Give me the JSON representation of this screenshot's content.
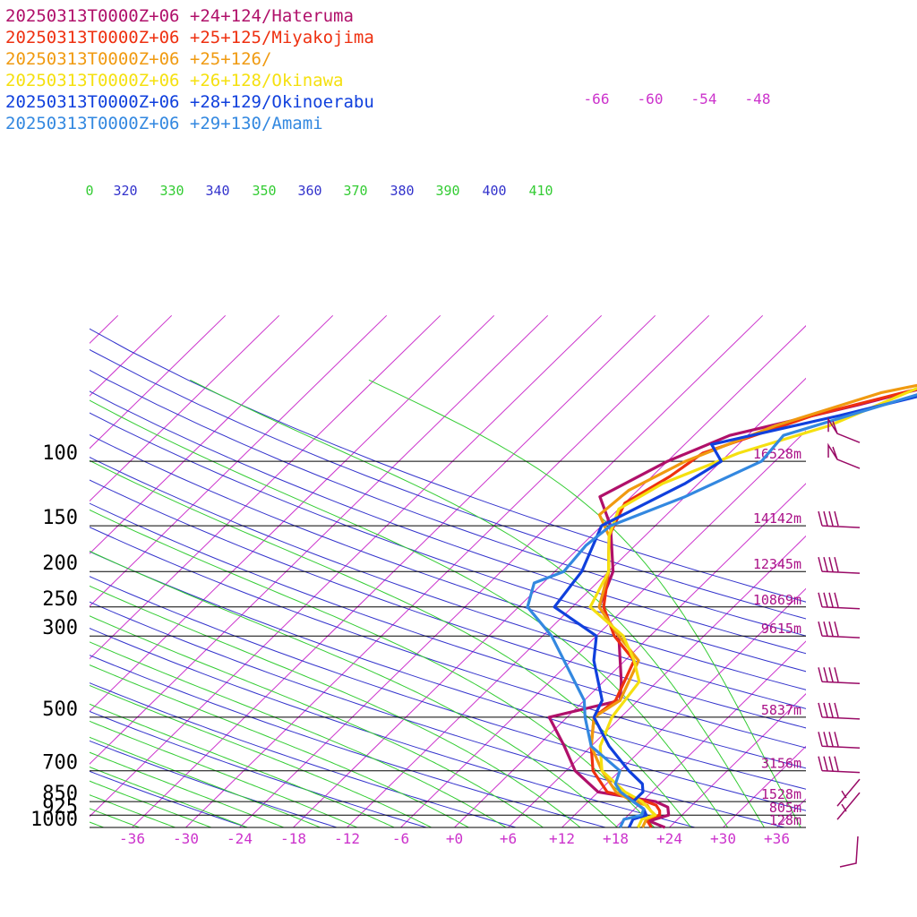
{
  "chart_data": {
    "type": "line",
    "title": "",
    "xlabel": "",
    "ylabel": "",
    "legend_position": "top-left",
    "colors": {
      "isobar": "#000000",
      "isotherm": "#cc33cc",
      "dry_adiabat": "#3333cc",
      "moist_adiabat": "#33cc33",
      "tick_label": "#cc33cc",
      "dry_label": "#3333cc",
      "moist_label": "#33cc33",
      "height_label": "#aa1188"
    },
    "pressure_levels": [
      {
        "p": 100,
        "label": "100",
        "height": "16528m"
      },
      {
        "p": 150,
        "label": "150",
        "height": "14142m"
      },
      {
        "p": 200,
        "label": "200",
        "height": "12345m"
      },
      {
        "p": 250,
        "label": "250",
        "height": "10869m"
      },
      {
        "p": 300,
        "label": "300",
        "height": "9615m"
      },
      {
        "p": 500,
        "label": "500",
        "height": "5837m"
      },
      {
        "p": 700,
        "label": "700",
        "height": "3156m"
      },
      {
        "p": 850,
        "label": "850",
        "height": "1528m"
      },
      {
        "p": 925,
        "label": "925",
        "height": "805m"
      },
      {
        "p": 1000,
        "label": "1000",
        "height": "128m"
      }
    ],
    "x_ticks": [
      {
        "t": -36,
        "label": "-36"
      },
      {
        "t": -30,
        "label": "-30"
      },
      {
        "t": -24,
        "label": "-24"
      },
      {
        "t": -18,
        "label": "-18"
      },
      {
        "t": -12,
        "label": "-12"
      },
      {
        "t": -6,
        "label": "-6"
      },
      {
        "t": 0,
        "label": "+0"
      },
      {
        "t": 6,
        "label": "+6"
      },
      {
        "t": 12,
        "label": "+12"
      },
      {
        "t": 18,
        "label": "+18"
      },
      {
        "t": 24,
        "label": "+24"
      },
      {
        "t": 30,
        "label": "+30"
      },
      {
        "t": 36,
        "label": "+36"
      }
    ],
    "top_ticks": [
      {
        "t": -66,
        "label": "-66"
      },
      {
        "t": -60,
        "label": "-60"
      },
      {
        "t": -54,
        "label": "-54"
      },
      {
        "t": -48,
        "label": "-48"
      }
    ],
    "theta_labels": [
      {
        "text": "0",
        "kind": "moist"
      },
      {
        "text": "320",
        "kind": "dry"
      },
      {
        "text": "330",
        "kind": "moist"
      },
      {
        "text": "340",
        "kind": "dry"
      },
      {
        "text": "350",
        "kind": "moist"
      },
      {
        "text": "360",
        "kind": "dry"
      },
      {
        "text": "370",
        "kind": "moist"
      },
      {
        "text": "380",
        "kind": "dry"
      },
      {
        "text": "390",
        "kind": "moist"
      },
      {
        "text": "400",
        "kind": "dry"
      },
      {
        "text": "410",
        "kind": "moist"
      }
    ],
    "series": [
      {
        "name": "20250313T0000Z+06 +24+124/Hateruma",
        "color": "#b0106a",
        "points": [
          [
            1000,
            23.5
          ],
          [
            960,
            21
          ],
          [
            925,
            22.5
          ],
          [
            880,
            21.5
          ],
          [
            850,
            19.5
          ],
          [
            800,
            12
          ],
          [
            700,
            7
          ],
          [
            600,
            3
          ],
          [
            500,
            -2
          ],
          [
            450,
            4
          ],
          [
            400,
            2
          ],
          [
            300,
            -3.5
          ],
          [
            250,
            -9
          ],
          [
            200,
            -11.5
          ],
          [
            150,
            -17
          ],
          [
            125,
            -21.5
          ],
          [
            100,
            -18
          ],
          [
            85,
            -14
          ],
          [
            70,
            -3
          ],
          [
            50,
            14
          ]
        ]
      },
      {
        "name": "20250313T0000Z+06 +25+125/Miyakojima",
        "color": "#ee3010",
        "points": [
          [
            1000,
            22
          ],
          [
            950,
            20.5
          ],
          [
            925,
            21.5
          ],
          [
            900,
            21
          ],
          [
            870,
            20
          ],
          [
            850,
            18.5
          ],
          [
            800,
            13
          ],
          [
            700,
            9
          ],
          [
            600,
            6
          ],
          [
            500,
            3
          ],
          [
            450,
            3.5
          ],
          [
            350,
            1
          ],
          [
            300,
            -4
          ],
          [
            250,
            -8.5
          ],
          [
            200,
            -12
          ],
          [
            160,
            -16
          ],
          [
            130,
            -18
          ],
          [
            110,
            -16
          ],
          [
            95,
            -15
          ],
          [
            75,
            -7
          ],
          [
            50,
            14
          ]
        ]
      },
      {
        "name": "20250313T0000Z+06 +25+126/",
        "color": "#f09a10",
        "points": [
          [
            1000,
            21
          ],
          [
            950,
            20.5
          ],
          [
            925,
            21
          ],
          [
            900,
            20
          ],
          [
            870,
            19
          ],
          [
            850,
            17
          ],
          [
            800,
            14
          ],
          [
            700,
            10
          ],
          [
            600,
            6
          ],
          [
            500,
            3
          ],
          [
            450,
            4
          ],
          [
            350,
            1.5
          ],
          [
            300,
            -3.5
          ],
          [
            250,
            -9
          ],
          [
            200,
            -12
          ],
          [
            160,
            -16
          ],
          [
            140,
            -19.5
          ],
          [
            120,
            -19
          ],
          [
            100,
            -16
          ],
          [
            80,
            -10
          ],
          [
            65,
            -2
          ],
          [
            50,
            16
          ]
        ]
      },
      {
        "name": "20250313T0000Z+06 +26+128/Okinawa",
        "color": "#f5e010",
        "points": [
          [
            1000,
            20.5
          ],
          [
            950,
            20
          ],
          [
            925,
            21
          ],
          [
            900,
            20
          ],
          [
            850,
            18
          ],
          [
            800,
            15
          ],
          [
            700,
            10
          ],
          [
            600,
            7
          ],
          [
            500,
            5
          ],
          [
            400,
            4
          ],
          [
            350,
            1
          ],
          [
            300,
            -3
          ],
          [
            250,
            -10
          ],
          [
            200,
            -12
          ],
          [
            160,
            -16
          ],
          [
            135,
            -18
          ],
          [
            115,
            -16
          ],
          [
            95,
            -11
          ],
          [
            80,
            -4
          ],
          [
            62,
            2
          ],
          [
            50,
            17
          ]
        ]
      },
      {
        "name": "20250313T0000Z+06 +28+129/Okinoerabu",
        "color": "#1040dd",
        "points": [
          [
            1000,
            19.5
          ],
          [
            950,
            19
          ],
          [
            925,
            20
          ],
          [
            890,
            19
          ],
          [
            850,
            17
          ],
          [
            800,
            17
          ],
          [
            760,
            16
          ],
          [
            700,
            13
          ],
          [
            600,
            8
          ],
          [
            500,
            3
          ],
          [
            450,
            2
          ],
          [
            350,
            -3.5
          ],
          [
            300,
            -6
          ],
          [
            250,
            -14
          ],
          [
            200,
            -15
          ],
          [
            150,
            -18
          ],
          [
            115,
            -13.5
          ],
          [
            100,
            -12
          ],
          [
            90,
            -15
          ],
          [
            75,
            -4
          ],
          [
            50,
            18
          ]
        ]
      },
      {
        "name": "20250313T0000Z+06 +29+130/Amami",
        "color": "#3388e0",
        "points": [
          [
            1000,
            18.5
          ],
          [
            950,
            18
          ],
          [
            925,
            19.5
          ],
          [
            890,
            19
          ],
          [
            850,
            17
          ],
          [
            800,
            14.5
          ],
          [
            760,
            13
          ],
          [
            700,
            12
          ],
          [
            600,
            6
          ],
          [
            500,
            2
          ],
          [
            450,
            0
          ],
          [
            300,
            -11
          ],
          [
            250,
            -17
          ],
          [
            215,
            -19
          ],
          [
            200,
            -17
          ],
          [
            170,
            -17.5
          ],
          [
            150,
            -17
          ],
          [
            125,
            -12
          ],
          [
            100,
            -7.5
          ],
          [
            85,
            -8
          ],
          [
            60,
            6
          ],
          [
            50,
            20
          ]
        ]
      }
    ],
    "wind_barbs": [
      {
        "p": 85,
        "kind": "pennant"
      },
      {
        "p": 100,
        "kind": "pennant"
      },
      {
        "p": 150,
        "kind": "barbs"
      },
      {
        "p": 200,
        "kind": "barbs"
      },
      {
        "p": 250,
        "kind": "barbs"
      },
      {
        "p": 300,
        "kind": "barbs"
      },
      {
        "p": 400,
        "kind": "barbs"
      },
      {
        "p": 500,
        "kind": "barbs"
      },
      {
        "p": 600,
        "kind": "barbs"
      },
      {
        "p": 700,
        "kind": "barbs"
      },
      {
        "p": 850,
        "kind": "light"
      },
      {
        "p": 925,
        "kind": "light"
      },
      {
        "p": 1000,
        "kind": "calm"
      }
    ]
  }
}
